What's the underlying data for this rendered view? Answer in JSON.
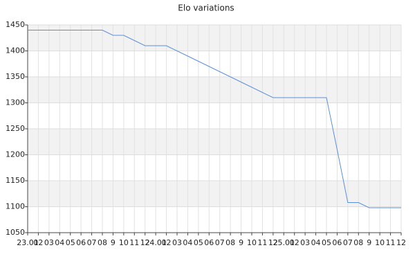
{
  "chart_data": {
    "type": "line",
    "title": "Elo variations",
    "categories": [
      "23.01",
      "02",
      "03",
      "04",
      "05",
      "06",
      "07",
      "08",
      "9",
      "10",
      "11",
      "12",
      "24.01",
      "02",
      "03",
      "04",
      "05",
      "06",
      "07",
      "08",
      "9",
      "10",
      "11",
      "12",
      "25.01",
      "02",
      "03",
      "04",
      "05",
      "06",
      "07",
      "08",
      "9",
      "10",
      "11",
      "12"
    ],
    "series": [
      {
        "color": "#5b8fd9",
        "values": [
          1440,
          1440,
          1440,
          1440,
          1440,
          1440,
          1440,
          1440,
          1430,
          1430,
          1420,
          1410,
          1410,
          1410,
          1400,
          1390,
          1380,
          1370,
          1360,
          1350,
          1340,
          1330,
          1320,
          1310,
          1310,
          1310,
          1310,
          1310,
          1310,
          1210,
          1108,
          1108,
          1098,
          1098,
          1098,
          1098
        ]
      }
    ],
    "ylim": [
      1050,
      1450
    ],
    "yticks": [
      1050,
      1100,
      1150,
      1200,
      1250,
      1300,
      1350,
      1400,
      1450
    ],
    "grid": true
  }
}
